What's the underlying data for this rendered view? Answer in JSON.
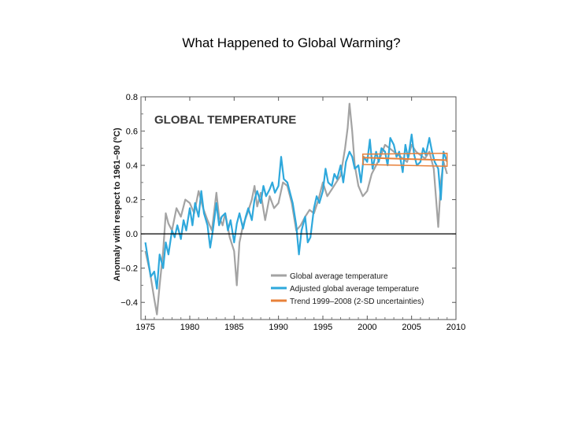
{
  "slide": {
    "title": "What Happened to Global Warming?"
  },
  "colors": {
    "global": "#a3a3a3",
    "adjusted": "#2ea8dc",
    "trend": "#e8813a",
    "zero": "#000000"
  },
  "chart_data": {
    "type": "line",
    "title": "GLOBAL TEMPERATURE",
    "xlabel": "",
    "ylabel": "Anomaly with respect to 1961–90 (ºC)",
    "xlim": [
      1974.5,
      2010
    ],
    "ylim": [
      -0.5,
      0.8
    ],
    "xticks": [
      1975,
      1980,
      1985,
      1990,
      1995,
      2000,
      2005,
      2010
    ],
    "yticks": [
      0.8,
      0.6,
      0.4,
      0.2,
      0.0,
      -0.2,
      -0.4
    ],
    "ytick_labels": [
      "0.8",
      "0.6",
      "0.4",
      "0.2",
      "0.0",
      "−0.2",
      "−0.4"
    ],
    "legend": {
      "position": "bottom-right",
      "entries": [
        "Global average temperature",
        "Adjusted global average temperature",
        "Trend 1999–2008 (2-SD uncertainties)"
      ]
    },
    "series": [
      {
        "name": "Global average temperature",
        "x": [
          1975.0,
          1975.5,
          1976.0,
          1976.3,
          1976.6,
          1977.0,
          1977.3,
          1977.6,
          1978.0,
          1978.5,
          1979.0,
          1979.5,
          1980.0,
          1980.5,
          1981.0,
          1981.5,
          1982.0,
          1982.5,
          1983.0,
          1983.3,
          1983.7,
          1984.0,
          1984.5,
          1985.0,
          1985.3,
          1985.6,
          1986.0,
          1986.5,
          1987.0,
          1987.3,
          1987.6,
          1988.0,
          1988.5,
          1989.0,
          1989.5,
          1990.0,
          1990.5,
          1991.0,
          1991.5,
          1992.0,
          1992.5,
          1993.0,
          1993.5,
          1994.0,
          1994.5,
          1995.0,
          1995.5,
          1996.0,
          1996.5,
          1997.0,
          1997.5,
          1997.8,
          1998.0,
          1998.3,
          1998.6,
          1999.0,
          1999.5,
          2000.0,
          2000.5,
          2001.0,
          2001.5,
          2002.0,
          2002.5,
          2003.0,
          2003.5,
          2004.0,
          2004.5,
          2005.0,
          2005.5,
          2006.0,
          2006.5,
          2007.0,
          2007.5,
          2008.0,
          2008.3,
          2008.6,
          2009.0
        ],
        "y": [
          -0.1,
          -0.22,
          -0.38,
          -0.47,
          -0.3,
          -0.1,
          0.12,
          0.06,
          0.02,
          0.15,
          0.1,
          0.2,
          0.18,
          0.12,
          0.25,
          0.15,
          0.08,
          0.02,
          0.24,
          0.1,
          0.05,
          0.12,
          -0.02,
          -0.1,
          -0.3,
          -0.05,
          0.05,
          0.12,
          0.2,
          0.28,
          0.16,
          0.24,
          0.08,
          0.22,
          0.15,
          0.18,
          0.3,
          0.28,
          0.18,
          0.02,
          0.05,
          0.1,
          0.14,
          0.12,
          0.2,
          0.3,
          0.22,
          0.26,
          0.3,
          0.34,
          0.5,
          0.62,
          0.76,
          0.6,
          0.4,
          0.28,
          0.22,
          0.25,
          0.35,
          0.4,
          0.45,
          0.52,
          0.5,
          0.48,
          0.46,
          0.44,
          0.42,
          0.52,
          0.48,
          0.46,
          0.44,
          0.48,
          0.38,
          0.04,
          0.3,
          0.42,
          0.35
        ]
      },
      {
        "name": "Adjusted global average temperature",
        "x": [
          1975.0,
          1975.3,
          1975.6,
          1976.0,
          1976.3,
          1976.6,
          1977.0,
          1977.3,
          1977.6,
          1978.0,
          1978.3,
          1978.6,
          1979.0,
          1979.3,
          1979.6,
          1980.0,
          1980.3,
          1980.6,
          1981.0,
          1981.3,
          1981.6,
          1982.0,
          1982.3,
          1982.6,
          1983.0,
          1983.3,
          1983.6,
          1984.0,
          1984.3,
          1984.6,
          1985.0,
          1985.3,
          1985.6,
          1986.0,
          1986.3,
          1986.6,
          1987.0,
          1987.3,
          1987.6,
          1988.0,
          1988.3,
          1988.6,
          1989.0,
          1989.3,
          1989.6,
          1990.0,
          1990.3,
          1990.6,
          1991.0,
          1991.3,
          1991.6,
          1992.0,
          1992.3,
          1992.6,
          1993.0,
          1993.3,
          1993.6,
          1994.0,
          1994.3,
          1994.6,
          1995.0,
          1995.3,
          1995.6,
          1996.0,
          1996.3,
          1996.6,
          1997.0,
          1997.3,
          1997.6,
          1998.0,
          1998.3,
          1998.6,
          1999.0,
          1999.3,
          1999.6,
          2000.0,
          2000.3,
          2000.6,
          2001.0,
          2001.3,
          2001.6,
          2002.0,
          2002.3,
          2002.6,
          2003.0,
          2003.3,
          2003.6,
          2004.0,
          2004.3,
          2004.6,
          2005.0,
          2005.3,
          2005.6,
          2006.0,
          2006.3,
          2006.6,
          2007.0,
          2007.3,
          2007.6,
          2008.0,
          2008.3,
          2008.6,
          2009.0
        ],
        "y": [
          -0.05,
          -0.15,
          -0.25,
          -0.22,
          -0.32,
          -0.12,
          -0.2,
          -0.05,
          -0.12,
          0.02,
          -0.02,
          0.05,
          -0.03,
          0.08,
          0.02,
          0.15,
          0.05,
          0.18,
          0.1,
          0.25,
          0.12,
          0.05,
          -0.08,
          0.02,
          0.18,
          0.05,
          0.1,
          0.12,
          0.02,
          0.08,
          -0.05,
          0.06,
          0.12,
          0.03,
          0.1,
          0.15,
          0.08,
          0.2,
          0.25,
          0.18,
          0.28,
          0.22,
          0.26,
          0.3,
          0.24,
          0.28,
          0.45,
          0.32,
          0.3,
          0.24,
          0.18,
          0.05,
          -0.12,
          0.02,
          0.1,
          -0.05,
          -0.02,
          0.15,
          0.22,
          0.18,
          0.25,
          0.38,
          0.3,
          0.28,
          0.35,
          0.32,
          0.4,
          0.3,
          0.42,
          0.48,
          0.45,
          0.38,
          0.4,
          0.3,
          0.45,
          0.42,
          0.55,
          0.38,
          0.48,
          0.42,
          0.5,
          0.48,
          0.4,
          0.56,
          0.52,
          0.45,
          0.48,
          0.36,
          0.52,
          0.44,
          0.58,
          0.46,
          0.4,
          0.42,
          0.5,
          0.46,
          0.56,
          0.48,
          0.42,
          0.38,
          0.2,
          0.48,
          0.42
        ]
      },
      {
        "name": "Trend 1999–2008 (2-SD uncertainties)",
        "x": [
          1999.5,
          2009.0
        ],
        "y": [
          0.445,
          0.43
        ],
        "lower": [
          0.405,
          0.395
        ],
        "upper": [
          0.465,
          0.47
        ]
      }
    ]
  }
}
